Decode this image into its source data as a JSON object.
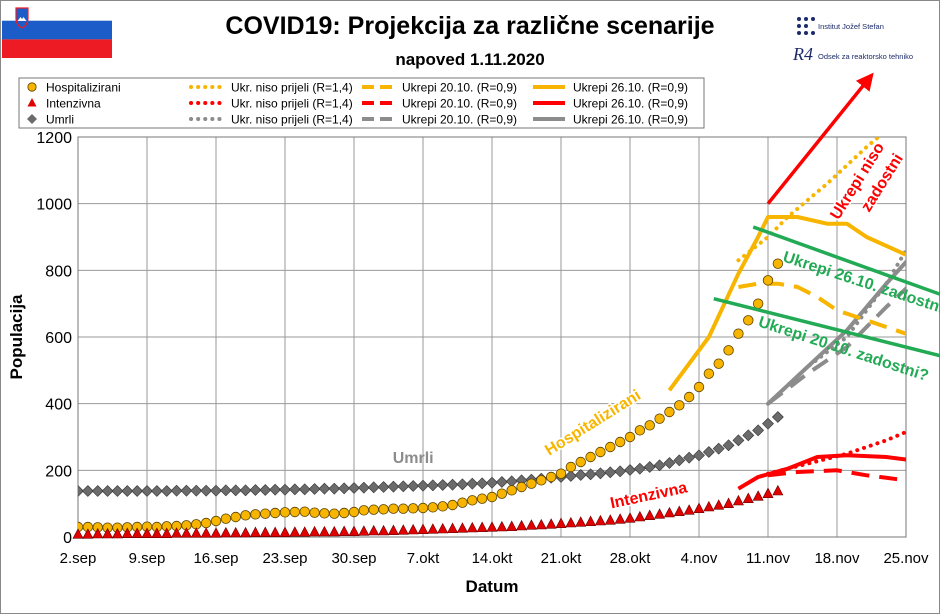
{
  "header": {
    "title": "COVID19: Projekcija za različne scenarije",
    "subtitle": "napoved 1.11.2020",
    "institute_1": "Institut Jožef Stefan",
    "institute_2": "Odsek za reaktorsko tehniko",
    "logo_2_text": "R4",
    "flag_icon": "slovenia-flag-icon"
  },
  "chart_data": {
    "type": "line",
    "xlabel": "Datum",
    "ylabel": "Populacija",
    "ylim": [
      0,
      1200
    ],
    "yticks": [
      0,
      200,
      400,
      600,
      800,
      1000,
      1200
    ],
    "xlim": [
      "2020-09-02",
      "2020-11-25"
    ],
    "xticks": [
      {
        "date": "2020-09-02",
        "label": "2.sep"
      },
      {
        "date": "2020-09-09",
        "label": "9.sep"
      },
      {
        "date": "2020-09-16",
        "label": "16.sep"
      },
      {
        "date": "2020-09-23",
        "label": "23.sep"
      },
      {
        "date": "2020-09-30",
        "label": "30.sep"
      },
      {
        "date": "2020-10-07",
        "label": "7.okt"
      },
      {
        "date": "2020-10-14",
        "label": "14.okt"
      },
      {
        "date": "2020-10-21",
        "label": "21.okt"
      },
      {
        "date": "2020-10-28",
        "label": "28.okt"
      },
      {
        "date": "2020-11-04",
        "label": "4.nov"
      },
      {
        "date": "2020-11-11",
        "label": "11.nov"
      },
      {
        "date": "2020-11-18",
        "label": "18.nov"
      },
      {
        "date": "2020-11-25",
        "label": "25.nov"
      }
    ],
    "grid": true,
    "colors": {
      "hosp": "#f7b500",
      "icu": "#ff0000",
      "deaths": "#8c8c8c",
      "green": "#22aa55"
    },
    "legend": {
      "placement": "top-left",
      "rows": [
        [
          "Hospitalizirani",
          "Ukr. niso prijeli (R=1,4)",
          "Ukrepi 20.10. (R=0,9)",
          "Ukrepi 26.10. (R=0,9)"
        ],
        [
          "Intenzivna",
          "Ukr. niso prijeli (R=1,4)",
          "Ukrepi 20.10. (R=0,9)",
          "Ukrepi 26.10. (R=0,9)"
        ],
        [
          "Umrli",
          "Ukr. niso prijeli (R=1,4)",
          "Ukrepi 20.10. (R=0,9)",
          "Ukrepi 26.10. (R=0,9)"
        ]
      ]
    },
    "observed": {
      "start": "2020-09-02",
      "hosp": [
        30,
        30,
        29,
        28,
        28,
        29,
        30,
        31,
        30,
        32,
        33,
        35,
        38,
        42,
        48,
        55,
        60,
        65,
        68,
        70,
        72,
        74,
        75,
        76,
        73,
        71,
        70,
        72,
        75,
        80,
        82,
        83,
        85,
        85,
        86,
        87,
        89,
        92,
        96,
        103,
        110,
        115,
        120,
        130,
        140,
        150,
        160,
        170,
        180,
        190,
        210,
        225,
        240,
        255,
        270,
        285,
        300,
        320,
        335,
        355,
        375,
        395,
        420,
        450,
        490,
        520,
        560,
        610,
        650,
        700,
        770,
        820
      ],
      "icu": [
        8,
        8,
        9,
        9,
        9,
        10,
        10,
        10,
        10,
        10,
        11,
        11,
        11,
        11,
        11,
        12,
        12,
        12,
        13,
        13,
        13,
        13,
        14,
        14,
        15,
        15,
        15,
        16,
        16,
        17,
        18,
        18,
        19,
        20,
        21,
        22,
        23,
        24,
        25,
        26,
        27,
        28,
        29,
        30,
        31,
        33,
        35,
        36,
        38,
        40,
        42,
        44,
        46,
        48,
        50,
        53,
        56,
        60,
        64,
        68,
        72,
        76,
        80,
        85,
        90,
        95,
        100,
        108,
        115,
        122,
        130,
        138
      ],
      "deaths": [
        138,
        138,
        138,
        138,
        138,
        138,
        138,
        138,
        138,
        138,
        139,
        139,
        139,
        139,
        139,
        140,
        140,
        140,
        141,
        141,
        142,
        142,
        143,
        143,
        144,
        145,
        145,
        146,
        147,
        148,
        149,
        150,
        151,
        152,
        153,
        154,
        155,
        156,
        157,
        158,
        160,
        161,
        163,
        165,
        167,
        170,
        172,
        175,
        178,
        180,
        183,
        186,
        188,
        191,
        194,
        197,
        201,
        205,
        210,
        215,
        222,
        230,
        238,
        245,
        255,
        265,
        275,
        290,
        305,
        320,
        340,
        360
      ]
    },
    "projections": {
      "hosp_r14": [
        [
          67,
          830
        ],
        [
          70,
          900
        ],
        [
          72,
          960
        ],
        [
          76,
          1060
        ],
        [
          80,
          1170
        ],
        [
          82,
          1220
        ]
      ],
      "hosp_2010": [
        [
          67,
          750
        ],
        [
          69,
          760
        ],
        [
          71,
          760
        ],
        [
          73,
          750
        ],
        [
          75,
          720
        ],
        [
          77,
          680
        ],
        [
          80,
          650
        ],
        [
          84,
          610
        ],
        [
          87,
          580
        ],
        [
          90,
          560
        ]
      ],
      "hosp_2610": [
        [
          60,
          440
        ],
        [
          64,
          600
        ],
        [
          67,
          790
        ],
        [
          69,
          900
        ],
        [
          70,
          960
        ],
        [
          73,
          960
        ],
        [
          76,
          940
        ],
        [
          78,
          940
        ],
        [
          80,
          900
        ],
        [
          83,
          860
        ],
        [
          86,
          820
        ],
        [
          88,
          790
        ],
        [
          90,
          740
        ]
      ],
      "icu_r14": [
        [
          70,
          190
        ],
        [
          74,
          220
        ],
        [
          78,
          250
        ],
        [
          82,
          290
        ],
        [
          86,
          340
        ],
        [
          90,
          430
        ]
      ],
      "icu_2010": [
        [
          70,
          185
        ],
        [
          73,
          195
        ],
        [
          77,
          200
        ],
        [
          80,
          185
        ],
        [
          84,
          170
        ],
        [
          88,
          165
        ],
        [
          90,
          160
        ]
      ],
      "icu_2610": [
        [
          67,
          145
        ],
        [
          69,
          180
        ],
        [
          72,
          205
        ],
        [
          75,
          240
        ],
        [
          78,
          245
        ],
        [
          82,
          240
        ],
        [
          86,
          225
        ],
        [
          89,
          215
        ],
        [
          90,
          210
        ]
      ],
      "deaths_r14": [
        [
          70,
          400
        ],
        [
          74,
          510
        ],
        [
          78,
          600
        ],
        [
          82,
          760
        ],
        [
          86,
          960
        ],
        [
          88,
          1090
        ],
        [
          90,
          1220
        ]
      ],
      "deaths_2010": [
        [
          70,
          400
        ],
        [
          74,
          490
        ],
        [
          78,
          570
        ],
        [
          82,
          690
        ],
        [
          86,
          800
        ],
        [
          90,
          930
        ]
      ],
      "deaths_2610": [
        [
          70,
          400
        ],
        [
          74,
          510
        ],
        [
          78,
          620
        ],
        [
          82,
          760
        ],
        [
          86,
          890
        ],
        [
          90,
          1070
        ]
      ]
    },
    "annotations": [
      {
        "text": "Hospitalizirani",
        "color": "#f7b500",
        "day": 52.5,
        "value": 330,
        "rotate": -32
      },
      {
        "text": "Umrli",
        "color": "#8c8c8c",
        "day": 34,
        "value": 222,
        "rotate": 0
      },
      {
        "text": "Intenzivna",
        "color": "#ff0000",
        "day": 58,
        "value": 110,
        "rotate": -12
      },
      {
        "text": "Ukrepi niso",
        "color": "#ff0000",
        "day": 79.5,
        "value": 1060,
        "rotate": -58
      },
      {
        "text": "zadostni",
        "color": "#ff0000",
        "day": 82,
        "value": 1055,
        "rotate": -58
      },
      {
        "text": "Ukrepi 26.10. zadostni?",
        "color": "#22aa55",
        "day": 80,
        "value": 745,
        "rotate": 18
      },
      {
        "text": "Ukrepi 20.10. zadostni?",
        "color": "#22aa55",
        "day": 77.5,
        "value": 550,
        "rotate": 18
      }
    ],
    "arrows": [
      {
        "color": "#ff0000",
        "from": [
          70,
          1000
        ],
        "to": [
          80.5,
          1385
        ]
      },
      {
        "color": "#22aa55",
        "from": [
          68.5,
          930
        ],
        "to": [
          92,
          680
        ]
      },
      {
        "color": "#22aa55",
        "from": [
          64.5,
          715
        ],
        "to": [
          92,
          510
        ]
      }
    ]
  }
}
